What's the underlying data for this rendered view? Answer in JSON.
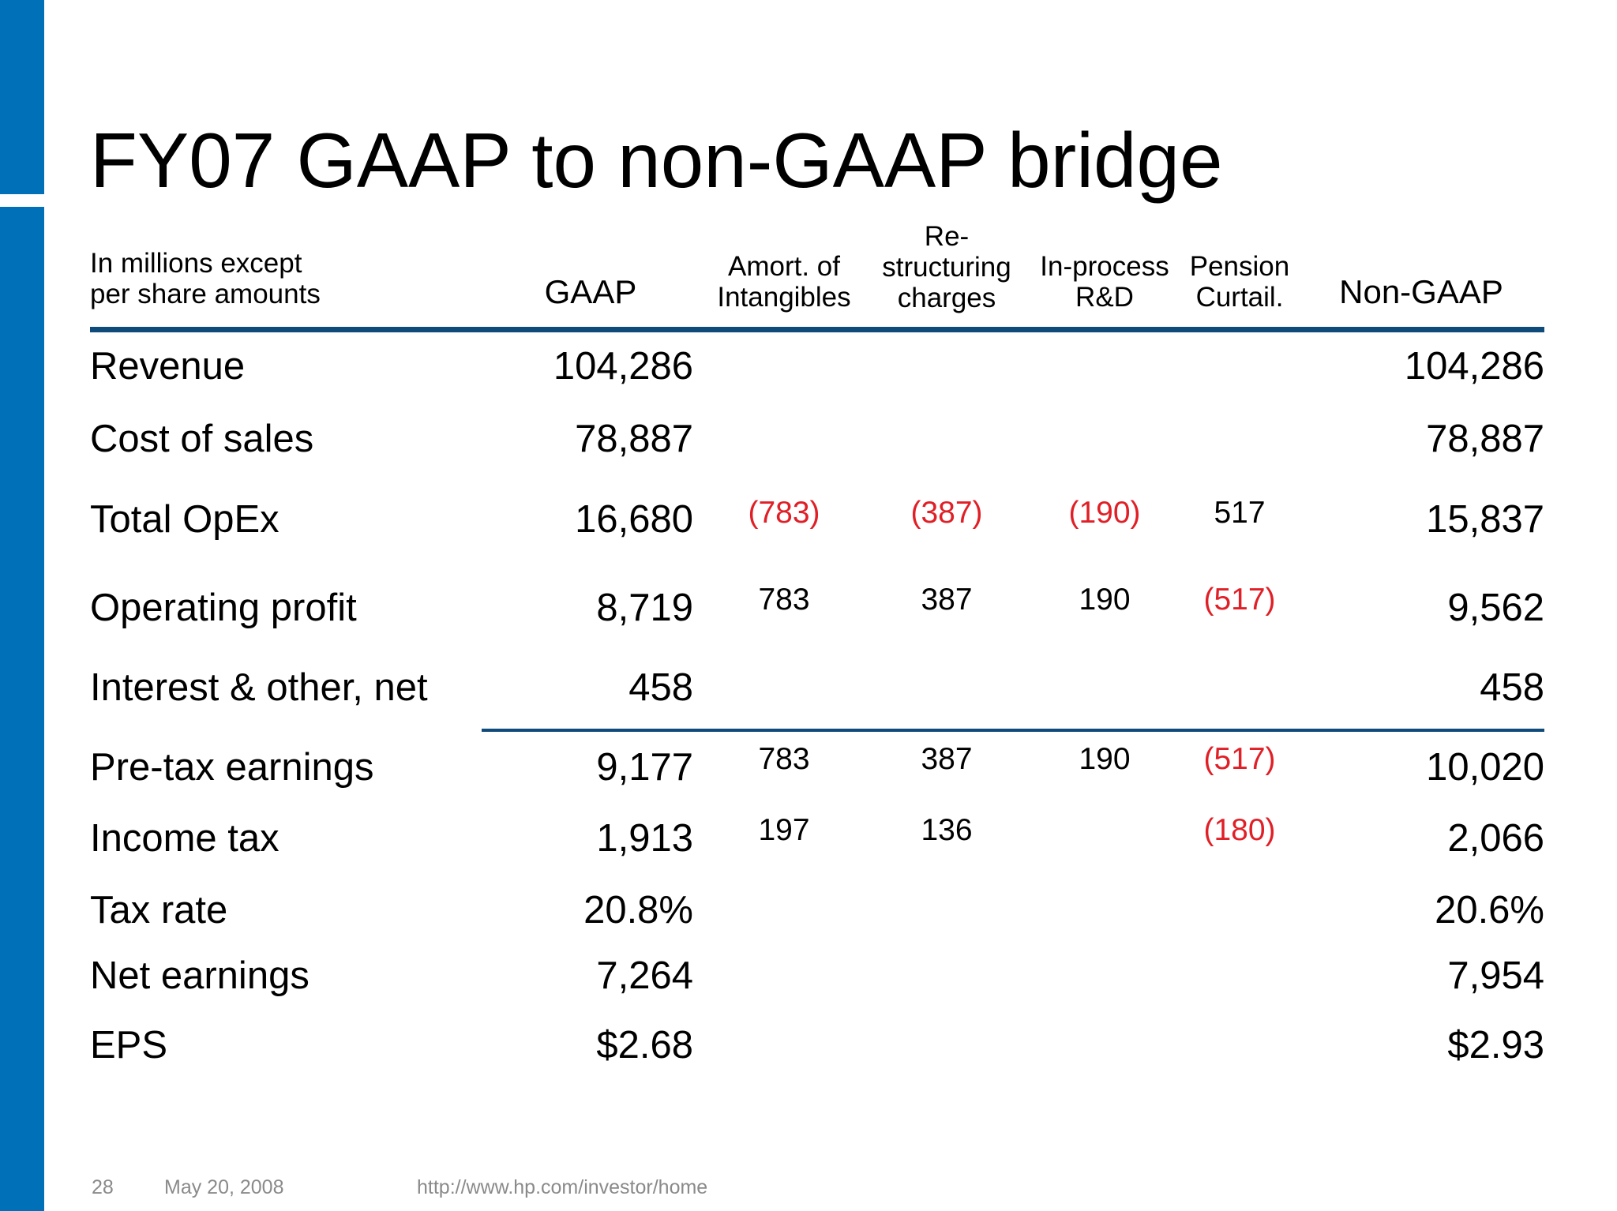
{
  "title": "FY07 GAAP to non-GAAP bridge",
  "colors": {
    "accent_bar": "#0071b9",
    "rule": "#0e4a7a",
    "negative": "#e01f26"
  },
  "header": {
    "units_line1": "In millions except",
    "units_line2": "per share amounts",
    "gaap": "GAAP",
    "amort_line1": "Amort. of",
    "amort_line2": "Intangibles",
    "restruct_line1": "Re-",
    "restruct_line2": "structuring",
    "restruct_line3": "charges",
    "iprd_line1": "In-process",
    "iprd_line2": "R&D",
    "pension_line1": "Pension",
    "pension_line2": "Curtail.",
    "non_gaap": "Non-GAAP"
  },
  "rows": [
    {
      "label": "Revenue",
      "gaap": "104,286",
      "amort": "",
      "restruct": "",
      "iprd": "",
      "pension": "",
      "non_gaap": "104,286"
    },
    {
      "label": "Cost of sales",
      "gaap": "78,887",
      "amort": "",
      "restruct": "",
      "iprd": "",
      "pension": "",
      "non_gaap": "78,887"
    },
    {
      "label": "Total OpEx",
      "gaap": "16,680",
      "amort": "(783)",
      "restruct": "(387)",
      "iprd": "(190)",
      "pension": "517",
      "non_gaap": "15,837"
    },
    {
      "label": "Operating profit",
      "gaap": "8,719",
      "amort": "783",
      "restruct": "387",
      "iprd": "190",
      "pension": "(517)",
      "non_gaap": "9,562"
    },
    {
      "label": "Interest & other, net",
      "gaap": "458",
      "amort": "",
      "restruct": "",
      "iprd": "",
      "pension": "",
      "non_gaap": "458"
    },
    {
      "label": "Pre-tax earnings",
      "gaap": "9,177",
      "amort": "783",
      "restruct": "387",
      "iprd": "190",
      "pension": "(517)",
      "non_gaap": "10,020"
    },
    {
      "label": "Income tax",
      "gaap": "1,913",
      "amort": "197",
      "restruct": "136",
      "iprd": "",
      "pension": "(180)",
      "non_gaap": "2,066"
    },
    {
      "label": "Tax rate",
      "gaap": "20.8%",
      "amort": "",
      "restruct": "",
      "iprd": "",
      "pension": "",
      "non_gaap": "20.6%"
    },
    {
      "label": "Net earnings",
      "gaap": "7,264",
      "amort": "",
      "restruct": "",
      "iprd": "",
      "pension": "",
      "non_gaap": "7,954"
    },
    {
      "label": "EPS",
      "gaap": "$2.68",
      "amort": "",
      "restruct": "",
      "iprd": "",
      "pension": "",
      "non_gaap": "$2.93"
    }
  ],
  "footer": {
    "page_number": "28",
    "date": "May 20, 2008",
    "url": "http://www.hp.com/investor/home"
  }
}
